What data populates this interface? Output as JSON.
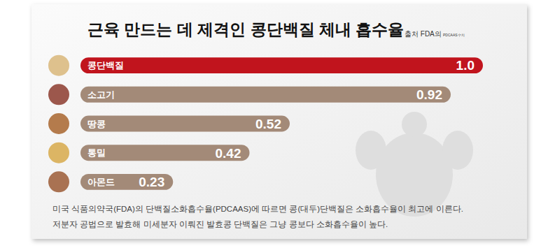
{
  "chart_data": {
    "type": "bar",
    "orientation": "horizontal",
    "title": "근육 만드는 데 제격인 콩단백질 체내 흡수율",
    "source": "출처 FDA의",
    "source_note": "PDCAAS수치",
    "categories": [
      "콩단백질",
      "소고기",
      "땅콩",
      "통밀",
      "아몬드"
    ],
    "values": [
      1.0,
      0.92,
      0.52,
      0.42,
      0.23
    ],
    "value_labels": [
      "1.0",
      "0.92",
      "0.52",
      "0.42",
      "0.23"
    ],
    "colors": [
      "#c1141d",
      "#a38a78",
      "#a38a78",
      "#a38a78",
      "#a38a78"
    ],
    "xlim": [
      0,
      1
    ],
    "data_labels": true,
    "tick_labels": false,
    "grid": false,
    "annotations": [
      "미국 식품의약국(FDA)의 단백질소화흡수율(PDCAAS)에 따르면 콩(대두)단백질은 소화흡수율이 최고에 이른다.",
      "저분자 공법으로 발효해 미세분자 이뤄진 발효콩 단백질은 그냥 콩보다 소화흡수율이 높다."
    ]
  }
}
